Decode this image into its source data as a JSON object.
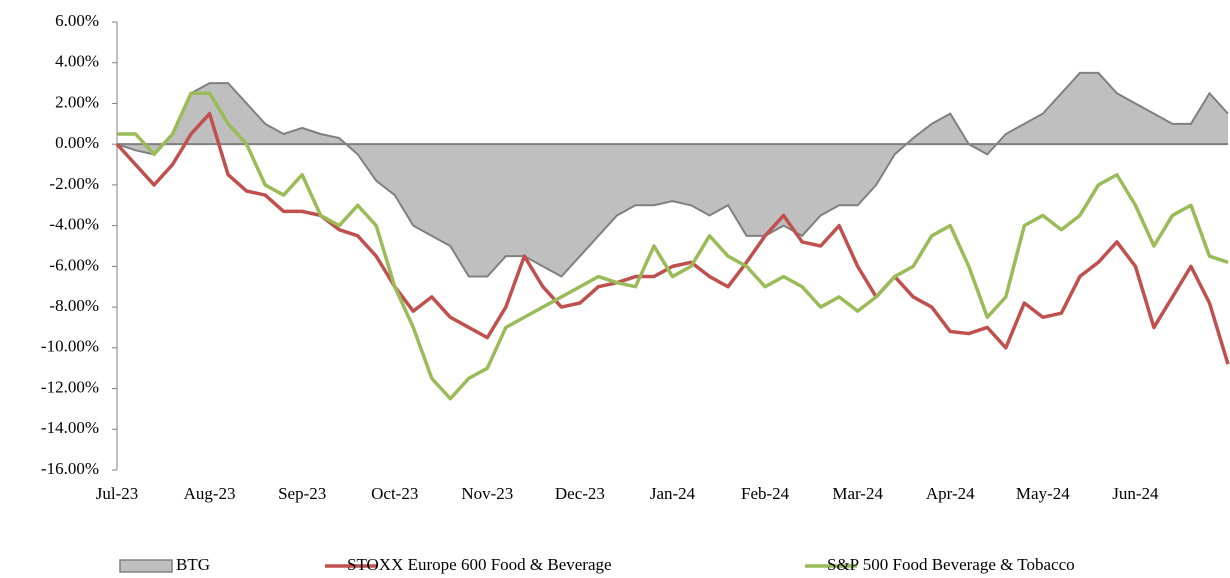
{
  "chart_data": {
    "type": "line",
    "xticks": [
      "Jul-23",
      "Aug-23",
      "Sep-23",
      "Oct-23",
      "Nov-23",
      "Dec-23",
      "Jan-24",
      "Feb-24",
      "Mar-24",
      "Apr-24",
      "May-24",
      "Jun-24"
    ],
    "ylim": [
      -16,
      6
    ],
    "yticks": [
      {
        "value": 6,
        "label": "6.00%"
      },
      {
        "value": 4,
        "label": "4.00%"
      },
      {
        "value": 2,
        "label": "2.00%"
      },
      {
        "value": 0,
        "label": "0.00%"
      },
      {
        "value": -2,
        "label": "-2.00%"
      },
      {
        "value": -4,
        "label": "-4.00%"
      },
      {
        "value": -6,
        "label": "-6.00%"
      },
      {
        "value": -8,
        "label": "-8.00%"
      },
      {
        "value": -10,
        "label": "-10.00%"
      },
      {
        "value": -12,
        "label": "-12.00%"
      },
      {
        "value": -14,
        "label": "-14.00%"
      },
      {
        "value": -16,
        "label": "-16.00%"
      }
    ],
    "negative_tick_color": "#e02020",
    "grid": false,
    "legend": "bottom",
    "series": [
      {
        "name": "BTG",
        "type": "area",
        "color": "#bfbfbf",
        "line_color": "#808080",
        "values": [
          0,
          -0.3,
          -0.5,
          0.5,
          2.5,
          3.0,
          3.0,
          2.0,
          1.0,
          0.5,
          0.8,
          0.5,
          0.3,
          -0.5,
          -1.8,
          -2.5,
          -4.0,
          -4.5,
          -5.0,
          -6.5,
          -6.5,
          -5.5,
          -5.5,
          -6.0,
          -6.5,
          -5.5,
          -4.5,
          -3.5,
          -3.0,
          -3.0,
          -2.8,
          -3.0,
          -3.5,
          -3.0,
          -4.5,
          -4.5,
          -4.0,
          -4.5,
          -3.5,
          -3.0,
          -3.0,
          -2.0,
          -0.5,
          0.3,
          1.0,
          1.5,
          0.0,
          -0.5,
          0.5,
          1.0,
          1.5,
          2.5,
          3.5,
          3.5,
          2.5,
          2.0,
          1.5,
          1.0,
          1.0,
          2.5,
          1.5
        ]
      },
      {
        "name": "STOXX Europe 600 Food & Beverage",
        "type": "line",
        "color": "#c0504d",
        "values": [
          0,
          -1,
          -2,
          -1,
          0.5,
          1.5,
          -1.5,
          -2.3,
          -2.5,
          -3.3,
          -3.3,
          -3.5,
          -4.2,
          -4.5,
          -5.5,
          -7.0,
          -8.2,
          -7.5,
          -8.5,
          -9.0,
          -9.5,
          -8.0,
          -5.5,
          -7.0,
          -8.0,
          -7.8,
          -7.0,
          -6.8,
          -6.5,
          -6.5,
          -6.0,
          -5.8,
          -6.5,
          -7.0,
          -5.8,
          -4.5,
          -3.5,
          -4.8,
          -5.0,
          -4.0,
          -6.0,
          -7.5,
          -6.5,
          -7.5,
          -8.0,
          -9.2,
          -9.3,
          -9.0,
          -10.0,
          -7.8,
          -8.5,
          -8.3,
          -6.5,
          -5.8,
          -4.8,
          -6.0,
          -9.0,
          -7.5,
          -6.0,
          -7.8,
          -10.8
        ]
      },
      {
        "name": "S&P 500 Food Beverage & Tobacco",
        "type": "line",
        "color": "#9bbb59",
        "values": [
          0.5,
          0.5,
          -0.5,
          0.5,
          2.5,
          2.5,
          1.0,
          0.0,
          -2.0,
          -2.5,
          -1.5,
          -3.5,
          -4.0,
          -3.0,
          -4.0,
          -7.0,
          -9.0,
          -11.5,
          -12.5,
          -11.5,
          -11.0,
          -9.0,
          -8.5,
          -8.0,
          -7.5,
          -7.0,
          -6.5,
          -6.8,
          -7.0,
          -5.0,
          -6.5,
          -6.0,
          -4.5,
          -5.5,
          -6.0,
          -7.0,
          -6.5,
          -7.0,
          -8.0,
          -7.5,
          -8.2,
          -7.5,
          -6.5,
          -6.0,
          -4.5,
          -4.0,
          -6.0,
          -8.5,
          -7.5,
          -4.0,
          -3.5,
          -4.2,
          -3.5,
          -2.0,
          -1.5,
          -3.0,
          -5.0,
          -3.5,
          -3.0,
          -5.5,
          -5.8
        ]
      }
    ]
  }
}
